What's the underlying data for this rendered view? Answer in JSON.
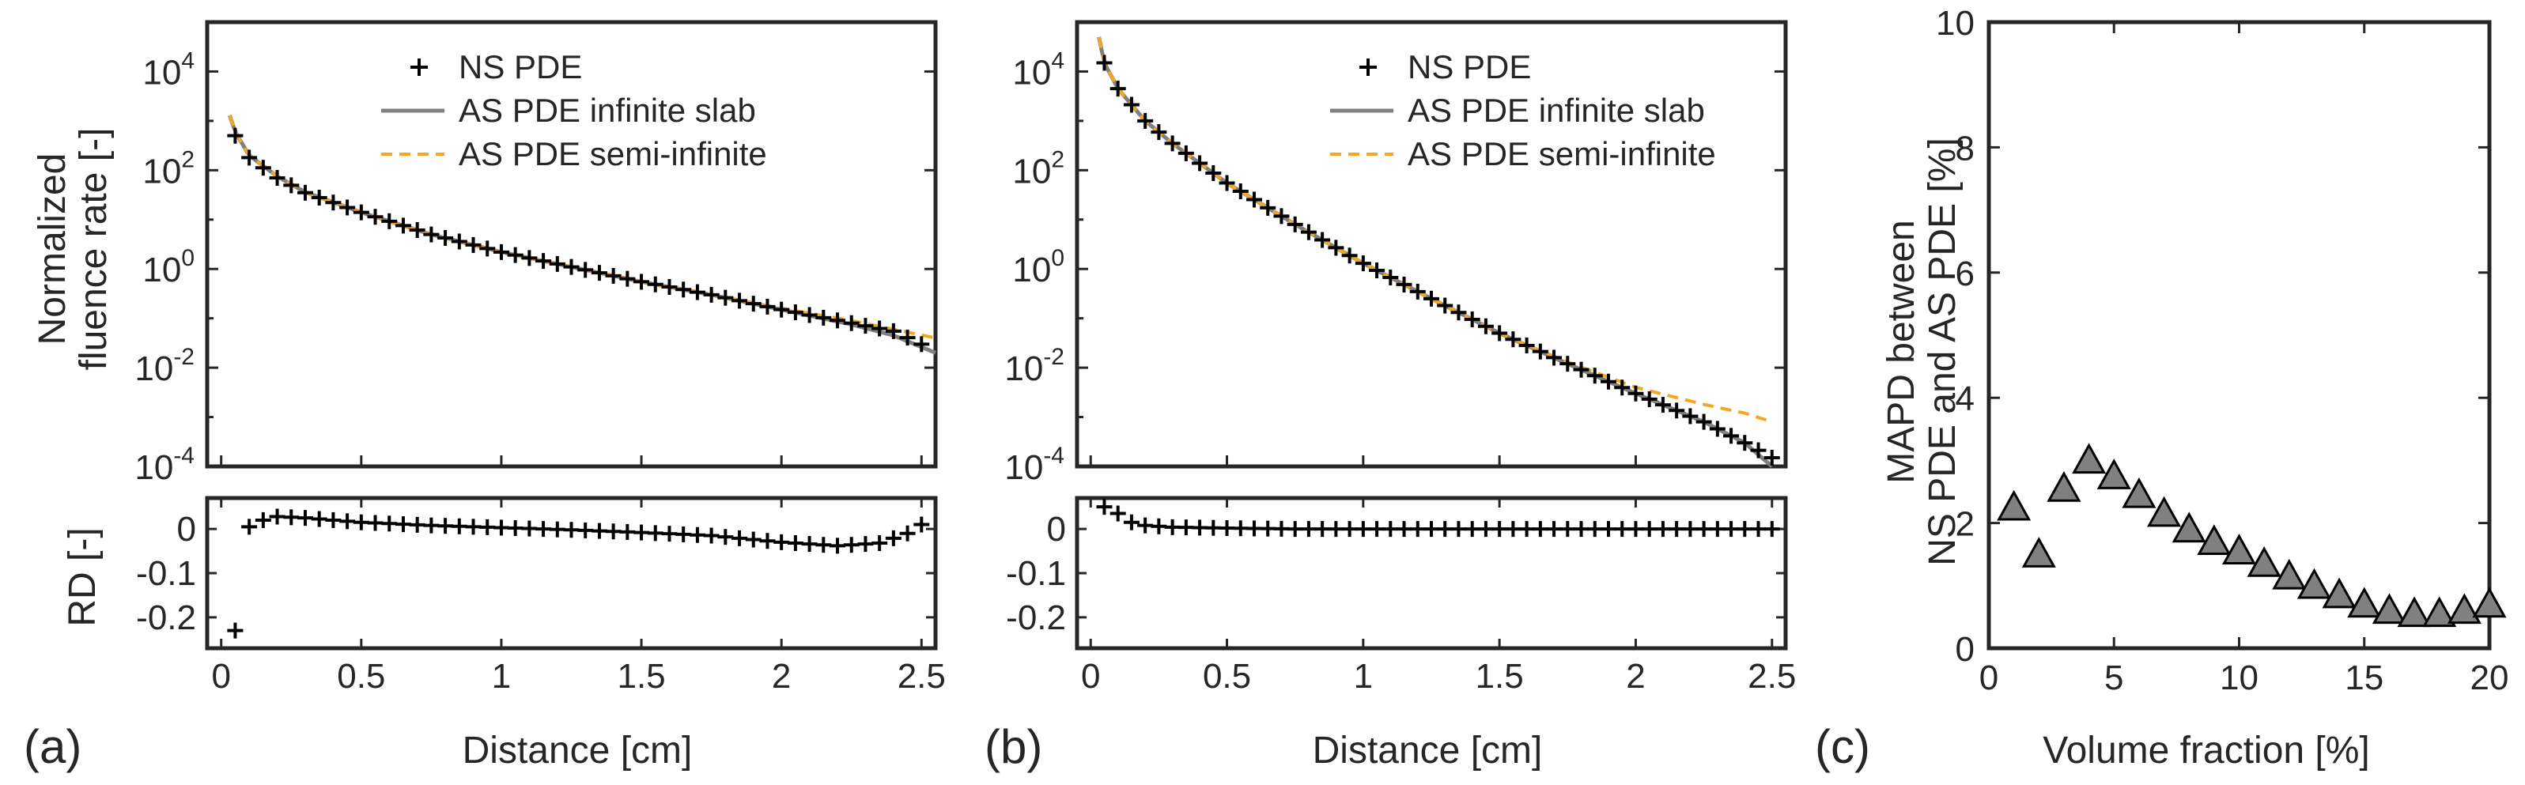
{
  "chart_data": [
    {
      "id": "a",
      "type": "line",
      "panel_label": "(a)",
      "xlabel": "Distance [cm]",
      "ylabel_lines": [
        "Normalized",
        "fluence rate [-]"
      ],
      "yscale": "log",
      "xlim": [
        -0.05,
        2.55
      ],
      "ylim": [
        0.0001,
        100000
      ],
      "xticks": [
        "0",
        "0.5",
        "1",
        "1.5",
        "2",
        "2.5"
      ],
      "yticks": [
        {
          "base": "10",
          "exp": "-4"
        },
        {
          "base": "10",
          "exp": "-2"
        },
        {
          "base": "10",
          "exp": "0"
        },
        {
          "base": "10",
          "exp": "2"
        },
        {
          "base": "10",
          "exp": "4"
        }
      ],
      "legend": [
        {
          "label": "NS PDE",
          "style": "marker-plus",
          "color": "#000000"
        },
        {
          "label": "AS PDE infinite slab",
          "style": "solid",
          "color": "#808080"
        },
        {
          "label": "AS PDE semi-infinite",
          "style": "dashed",
          "color": "#f5a623"
        }
      ],
      "series": [
        {
          "name": "NS PDE",
          "points": [
            [
              0.05,
              500
            ],
            [
              0.1,
              180
            ],
            [
              0.2,
              70
            ],
            [
              0.3,
              35
            ],
            [
              0.5,
              14
            ],
            [
              0.75,
              5
            ],
            [
              1.0,
              2.2
            ],
            [
              1.25,
              1.1
            ],
            [
              1.5,
              0.55
            ],
            [
              1.75,
              0.3
            ],
            [
              2.0,
              0.15
            ],
            [
              2.25,
              0.08
            ],
            [
              2.4,
              0.055
            ],
            [
              2.5,
              0.03
            ]
          ]
        },
        {
          "name": "AS PDE infinite slab",
          "points": [
            [
              0.03,
              1300
            ],
            [
              0.05,
              600
            ],
            [
              0.1,
              200
            ],
            [
              0.2,
              75
            ],
            [
              0.3,
              36
            ],
            [
              0.5,
              14
            ],
            [
              0.75,
              5
            ],
            [
              1.0,
              2.2
            ],
            [
              1.25,
              1.1
            ],
            [
              1.5,
              0.55
            ],
            [
              1.75,
              0.3
            ],
            [
              2.0,
              0.15
            ],
            [
              2.25,
              0.075
            ],
            [
              2.4,
              0.045
            ],
            [
              2.55,
              0.02
            ]
          ]
        },
        {
          "name": "AS PDE semi-infinite",
          "points": [
            [
              0.03,
              1300
            ],
            [
              0.05,
              600
            ],
            [
              0.1,
              200
            ],
            [
              0.2,
              75
            ],
            [
              0.3,
              36
            ],
            [
              0.5,
              14
            ],
            [
              0.75,
              5
            ],
            [
              1.0,
              2.2
            ],
            [
              1.25,
              1.1
            ],
            [
              1.5,
              0.55
            ],
            [
              1.75,
              0.3
            ],
            [
              2.0,
              0.16
            ],
            [
              2.25,
              0.09
            ],
            [
              2.4,
              0.06
            ],
            [
              2.55,
              0.04
            ]
          ]
        }
      ],
      "rd": {
        "ylabel": "RD [-]",
        "ylim": [
          -0.27,
          0.07
        ],
        "yticks": [
          "0",
          "-0.1",
          "-0.2"
        ],
        "points": [
          [
            0.05,
            -0.23
          ],
          [
            0.1,
            0.005
          ],
          [
            0.15,
            0.02
          ],
          [
            0.2,
            0.028
          ],
          [
            0.3,
            0.025
          ],
          [
            0.5,
            0.015
          ],
          [
            0.75,
            0.008
          ],
          [
            1.0,
            0.003
          ],
          [
            1.25,
            -0.002
          ],
          [
            1.5,
            -0.008
          ],
          [
            1.75,
            -0.015
          ],
          [
            2.0,
            -0.03
          ],
          [
            2.2,
            -0.038
          ],
          [
            2.35,
            -0.032
          ],
          [
            2.45,
            -0.01
          ],
          [
            2.5,
            0.01
          ]
        ]
      }
    },
    {
      "id": "b",
      "type": "line",
      "panel_label": "(b)",
      "xlabel": "Distance [cm]",
      "yscale": "log",
      "xlim": [
        -0.05,
        2.55
      ],
      "ylim": [
        0.0001,
        100000
      ],
      "xticks": [
        "0",
        "0.5",
        "1",
        "1.5",
        "2",
        "2.5"
      ],
      "yticks": [
        {
          "base": "10",
          "exp": "-4"
        },
        {
          "base": "10",
          "exp": "-2"
        },
        {
          "base": "10",
          "exp": "0"
        },
        {
          "base": "10",
          "exp": "2"
        },
        {
          "base": "10",
          "exp": "4"
        }
      ],
      "legend": [
        {
          "label": "NS PDE",
          "style": "marker-plus",
          "color": "#000000"
        },
        {
          "label": "AS PDE infinite slab",
          "style": "solid",
          "color": "#808080"
        },
        {
          "label": "AS PDE semi-infinite",
          "style": "dashed",
          "color": "#f5a623"
        }
      ],
      "series": [
        {
          "name": "NS PDE",
          "points": [
            [
              0.05,
              15000
            ],
            [
              0.1,
              4500
            ],
            [
              0.2,
              1000
            ],
            [
              0.3,
              350
            ],
            [
              0.5,
              55
            ],
            [
              0.75,
              8
            ],
            [
              1.0,
              1.3
            ],
            [
              1.25,
              0.25
            ],
            [
              1.5,
              0.05
            ],
            [
              1.75,
              0.012
            ],
            [
              2.0,
              0.003
            ],
            [
              2.25,
              0.0008
            ],
            [
              2.4,
              0.0003
            ],
            [
              2.5,
              0.00015
            ]
          ]
        },
        {
          "name": "AS PDE infinite slab",
          "points": [
            [
              0.03,
              50000
            ],
            [
              0.05,
              15000
            ],
            [
              0.1,
              4500
            ],
            [
              0.2,
              1000
            ],
            [
              0.3,
              350
            ],
            [
              0.5,
              55
            ],
            [
              0.75,
              8
            ],
            [
              1.0,
              1.3
            ],
            [
              1.25,
              0.25
            ],
            [
              1.5,
              0.05
            ],
            [
              1.75,
              0.012
            ],
            [
              2.0,
              0.003
            ],
            [
              2.25,
              0.0008
            ],
            [
              2.4,
              0.0003
            ],
            [
              2.5,
              0.0001
            ]
          ]
        },
        {
          "name": "AS PDE semi-infinite",
          "points": [
            [
              0.03,
              50000
            ],
            [
              0.05,
              15000
            ],
            [
              0.1,
              4500
            ],
            [
              0.2,
              1000
            ],
            [
              0.3,
              350
            ],
            [
              0.5,
              55
            ],
            [
              0.75,
              8
            ],
            [
              1.0,
              1.3
            ],
            [
              1.25,
              0.25
            ],
            [
              1.5,
              0.05
            ],
            [
              1.75,
              0.013
            ],
            [
              2.0,
              0.004
            ],
            [
              2.25,
              0.0018
            ],
            [
              2.4,
              0.0012
            ],
            [
              2.5,
              0.0008
            ]
          ]
        }
      ],
      "rd": {
        "ylim": [
          -0.27,
          0.07
        ],
        "yticks": [
          "0",
          "-0.1",
          "-0.2"
        ],
        "points": [
          [
            0.05,
            0.05
          ],
          [
            0.1,
            0.035
          ],
          [
            0.15,
            0.015
          ],
          [
            0.2,
            0.008
          ],
          [
            0.3,
            0.004
          ],
          [
            0.5,
            0.002
          ],
          [
            0.75,
            0.0
          ],
          [
            1.0,
            0.0
          ],
          [
            1.5,
            0.0
          ],
          [
            2.0,
            0.0
          ],
          [
            2.5,
            0.0
          ]
        ]
      }
    },
    {
      "id": "c",
      "type": "scatter",
      "panel_label": "(c)",
      "xlabel": "Volume fraction [%]",
      "ylabel_lines": [
        "MAPD between",
        "NS PDE and AS PDE [%]"
      ],
      "xlim": [
        0,
        20
      ],
      "ylim": [
        0,
        10
      ],
      "xticks": [
        "0",
        "5",
        "10",
        "15",
        "20"
      ],
      "yticks": [
        "0",
        "2",
        "4",
        "6",
        "8",
        "10"
      ],
      "marker": "triangle",
      "marker_color": "#808080",
      "x": [
        1,
        2,
        3,
        4,
        5,
        6,
        7,
        8,
        9,
        10,
        11,
        12,
        13,
        14,
        15,
        16,
        17,
        18,
        19,
        20
      ],
      "y": [
        2.25,
        1.5,
        2.55,
        3.0,
        2.75,
        2.45,
        2.15,
        1.9,
        1.7,
        1.55,
        1.35,
        1.15,
        1.0,
        0.85,
        0.7,
        0.6,
        0.55,
        0.55,
        0.6,
        0.7
      ]
    }
  ]
}
